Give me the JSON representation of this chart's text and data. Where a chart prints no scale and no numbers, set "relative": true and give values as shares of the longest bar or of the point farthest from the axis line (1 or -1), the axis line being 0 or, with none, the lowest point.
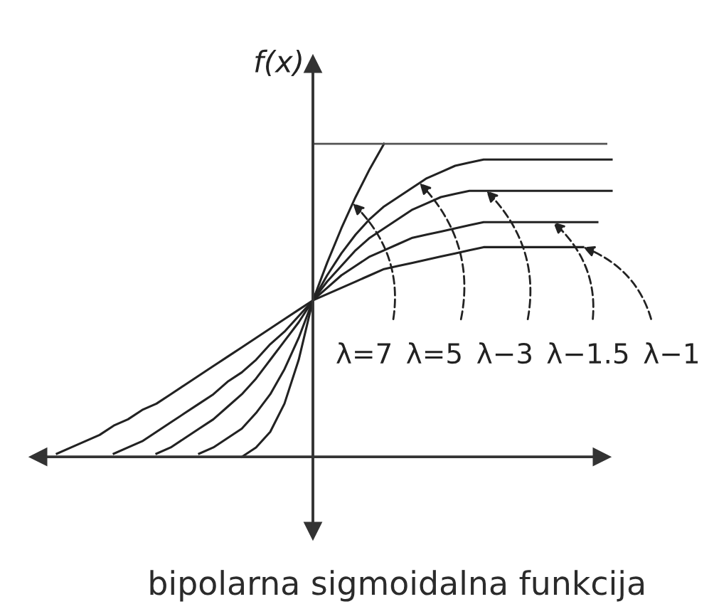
{
  "chart_data": {
    "type": "line",
    "relative": true,
    "ylabel": "f(x)",
    "title": "bipolarna sigmoidalna funkcija",
    "annotations": [
      "λ=7",
      "λ=5",
      "λ−3",
      "λ−1.5",
      "λ−1"
    ],
    "categories": [
      null,
      null,
      null,
      null,
      null,
      null,
      null,
      null,
      null,
      null,
      null,
      null,
      null,
      null,
      null,
      null,
      null,
      null,
      null,
      null,
      null,
      null,
      null,
      null,
      null,
      null,
      null,
      null,
      null,
      null,
      null,
      null,
      null,
      null,
      null,
      null,
      null,
      null,
      null,
      null,
      null
    ],
    "series": [
      {
        "color": "#222222",
        "values": [
          null,
          null,
          null,
          null,
          null,
          null,
          null,
          null,
          null,
          null,
          null,
          null,
          null,
          null,
          0,
          0.03,
          0.08,
          0.17,
          0.31,
          0.5,
          0.62,
          0.73,
          0.83,
          0.92,
          1,
          null,
          null,
          null,
          null,
          null,
          null,
          null,
          null,
          null,
          null,
          null,
          null,
          null,
          null,
          null,
          null
        ]
      },
      {
        "color": "#222222",
        "values": [
          null,
          null,
          null,
          null,
          null,
          null,
          null,
          null,
          null,
          null,
          null,
          0.01,
          0.03,
          0.06,
          0.09,
          0.14,
          0.2,
          0.28,
          0.38,
          0.5,
          0.58,
          0.65,
          0.71,
          0.76,
          0.8,
          0.83,
          0.86,
          0.89,
          0.91,
          0.93,
          0.94,
          0.95,
          0.95,
          0.95,
          0.95,
          0.95,
          0.95,
          0.95,
          0.95,
          0.95,
          0.95
        ]
      },
      {
        "color": "#222222",
        "values": [
          null,
          null,
          null,
          null,
          null,
          null,
          null,
          null,
          0.01,
          0.03,
          0.06,
          0.09,
          0.12,
          0.16,
          0.2,
          0.25,
          0.31,
          0.37,
          0.43,
          0.5,
          0.56,
          0.61,
          0.66,
          0.7,
          0.73,
          0.76,
          0.79,
          0.81,
          0.83,
          0.84,
          0.85,
          0.85,
          0.85,
          0.85,
          0.85,
          0.85,
          0.85,
          0.85,
          0.85,
          0.85,
          0.85
        ]
      },
      {
        "color": "#222222",
        "values": [
          null,
          null,
          null,
          null,
          null,
          0.01,
          0.03,
          0.05,
          0.08,
          0.11,
          0.14,
          0.17,
          0.2,
          0.24,
          0.27,
          0.31,
          0.36,
          0.4,
          0.45,
          0.5,
          0.54,
          0.58,
          0.61,
          0.64,
          0.66,
          0.68,
          0.7,
          0.71,
          0.72,
          0.73,
          0.74,
          0.75,
          0.75,
          0.75,
          0.75,
          0.75,
          0.75,
          0.75,
          0.75,
          0.75,
          null
        ]
      },
      {
        "color": "#222222",
        "values": [
          null,
          0.01,
          0.03,
          0.05,
          0.07,
          0.1,
          0.12,
          0.15,
          0.17,
          0.2,
          0.23,
          0.26,
          0.29,
          0.32,
          0.35,
          0.38,
          0.41,
          0.44,
          0.47,
          0.5,
          0.52,
          0.54,
          0.56,
          0.58,
          0.6,
          0.61,
          0.62,
          0.63,
          0.64,
          0.65,
          0.66,
          0.67,
          0.67,
          0.67,
          0.67,
          0.67,
          0.67,
          0.67,
          0.67,
          null,
          null
        ]
      }
    ],
    "ref_lines": [
      {
        "axis": "y",
        "value": 1,
        "color": "#555555"
      }
    ]
  }
}
